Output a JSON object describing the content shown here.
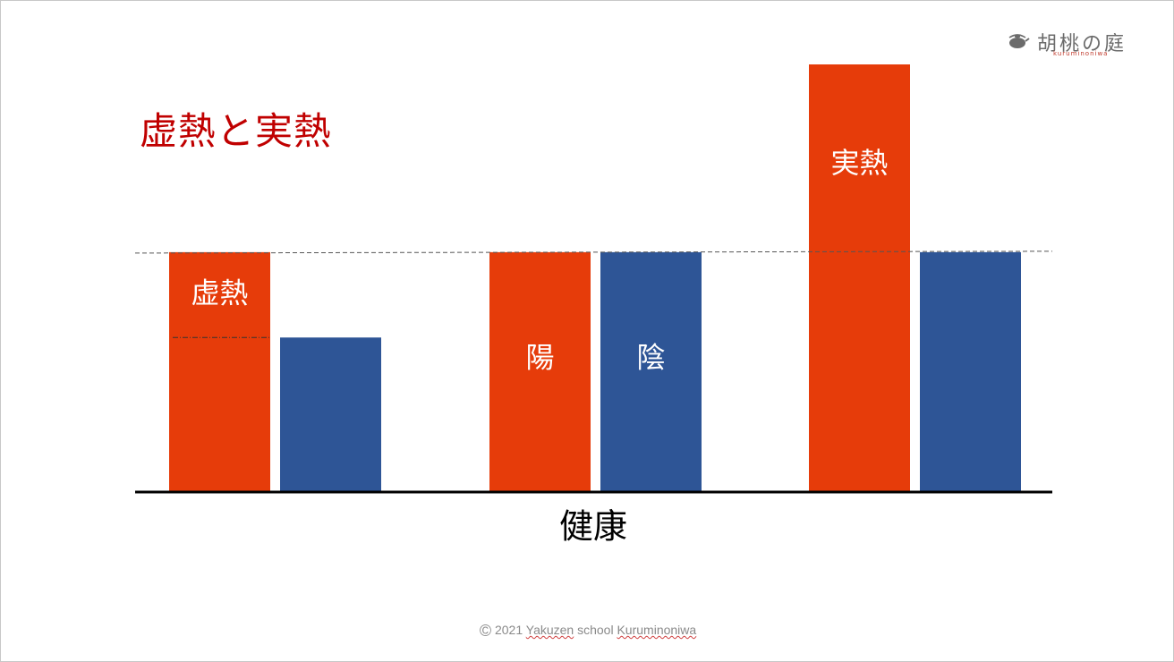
{
  "slide": {
    "title": "虚熱と実熱",
    "logo": {
      "brand": "胡桃の庭",
      "sub": "kuruminoniwa"
    },
    "copyright": {
      "symbol": "©",
      "year_text": "2021",
      "word1": "Yakuzen",
      "word2": "school",
      "word3": "Kuruminoniwa"
    }
  },
  "colors": {
    "yang": "#e63c0a",
    "yin": "#2e5596",
    "title": "#c00000",
    "axis": "#000000",
    "reference": "#555555"
  },
  "chart_data": {
    "type": "bar",
    "xlabel": "健康",
    "ylim": [
      0,
      100
    ],
    "reference_line": 56,
    "groups": [
      {
        "yang": 56,
        "yin": 36,
        "yang_label": "虚熱",
        "yin_label": "",
        "yang_split": 36
      },
      {
        "yang": 56,
        "yin": 56,
        "yang_label": "陽",
        "yin_label": "陰"
      },
      {
        "yang": 100,
        "yin": 56,
        "yang_label": "実熱",
        "yin_label": ""
      }
    ]
  }
}
